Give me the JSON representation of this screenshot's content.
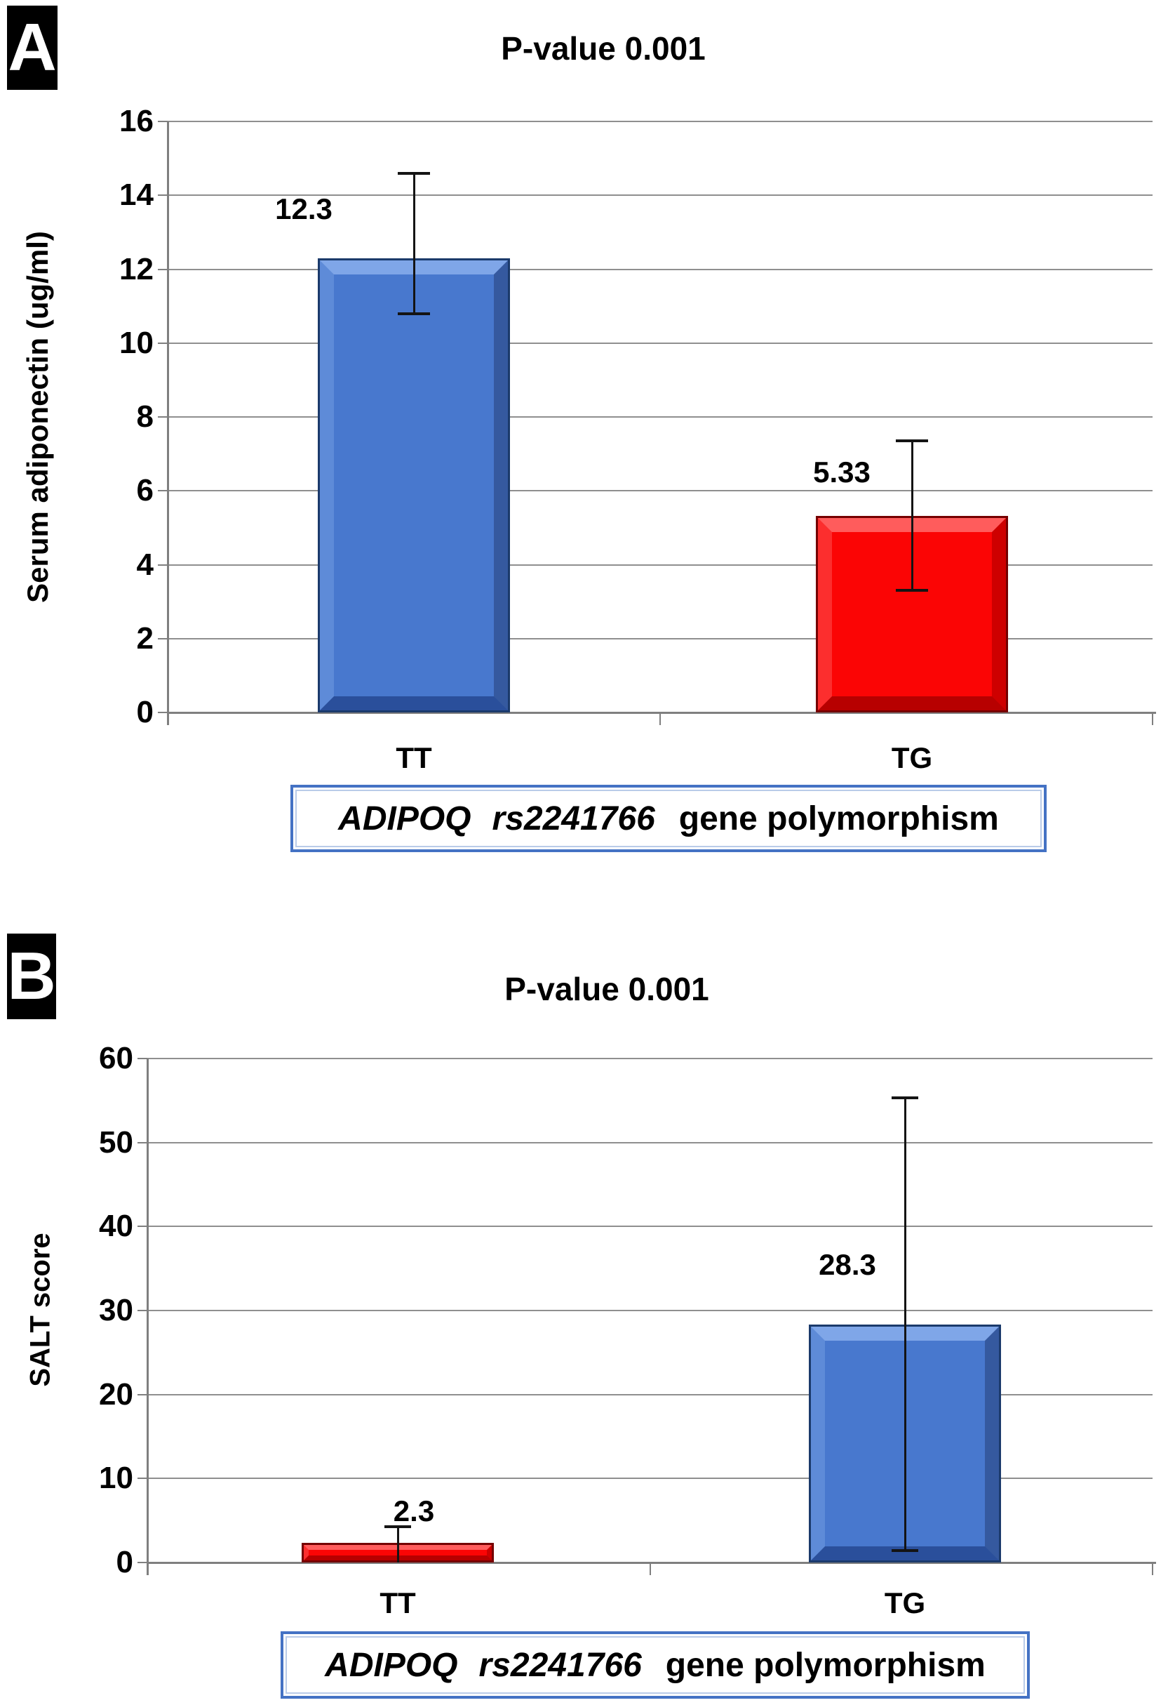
{
  "figure": {
    "description": "Two-panel bar chart of ADIPOQ rs2241766 genotype comparisons",
    "background": "#ffffff"
  },
  "colors": {
    "blue_fill": "#4878CE",
    "blue_edge": "#1B3A6B",
    "blue_bevel_top": "#7FA6E8",
    "blue_bevel_left": "#5E8BD8",
    "blue_bevel_right": "#35599F",
    "blue_bevel_bottom": "#2A4F9B",
    "red_fill": "#FB0505",
    "red_edge": "#750000",
    "red_bevel_top": "#FF5C5C",
    "red_bevel_left": "#FC2E2E",
    "red_bevel_right": "#CE0000",
    "red_bevel_bottom": "#B70000",
    "gridline": "#8f8f8f",
    "axis": "#7f7f7f",
    "error_bar": "#141414",
    "box_border": "#4472C4",
    "text": "#000000",
    "panel_label_bg": "#000000",
    "panel_label_fg": "#ffffff"
  },
  "chart_data": [
    {
      "type": "bar",
      "panel": "A",
      "title": "P-value 0.001",
      "ylabel": "Serum adiponectin (ug/ml)",
      "xlabel_gene": "ADIPOQ",
      "xlabel_snp": "rs2241766",
      "xlabel_rest": "gene polymorphism",
      "categories": [
        "TT",
        "TG"
      ],
      "ylim": [
        0,
        16
      ],
      "ytick_step": 2,
      "ytick_labels": [
        "0",
        "2",
        "4",
        "6",
        "8",
        "10",
        "12",
        "14",
        "16"
      ],
      "grid": true,
      "legend": "none",
      "bars": [
        {
          "category": "TT",
          "value": 12.3,
          "label": "12.3",
          "color": "blue",
          "error_high": 14.6,
          "error_low": 10.8
        },
        {
          "category": "TG",
          "value": 5.33,
          "label": "5.33",
          "color": "red",
          "error_high": 7.35,
          "error_low": 3.3
        }
      ]
    },
    {
      "type": "bar",
      "panel": "B",
      "title": "P-value 0.001",
      "ylabel": "SALT score",
      "xlabel_gene": "ADIPOQ",
      "xlabel_snp": "rs2241766",
      "xlabel_rest": "gene polymorphism",
      "categories": [
        "TT",
        "TG"
      ],
      "ylim": [
        0,
        60
      ],
      "ytick_step": 10,
      "ytick_labels": [
        "0",
        "10",
        "20",
        "30",
        "40",
        "50",
        "60"
      ],
      "grid": true,
      "legend": "none",
      "bars": [
        {
          "category": "TT",
          "value": 2.3,
          "label": "2.3",
          "color": "red",
          "error_high": 4.3,
          "error_low": 0
        },
        {
          "category": "TG",
          "value": 28.3,
          "label": "28.3",
          "color": "blue",
          "error_high": 55.3,
          "error_low": 1.4
        }
      ]
    }
  ]
}
